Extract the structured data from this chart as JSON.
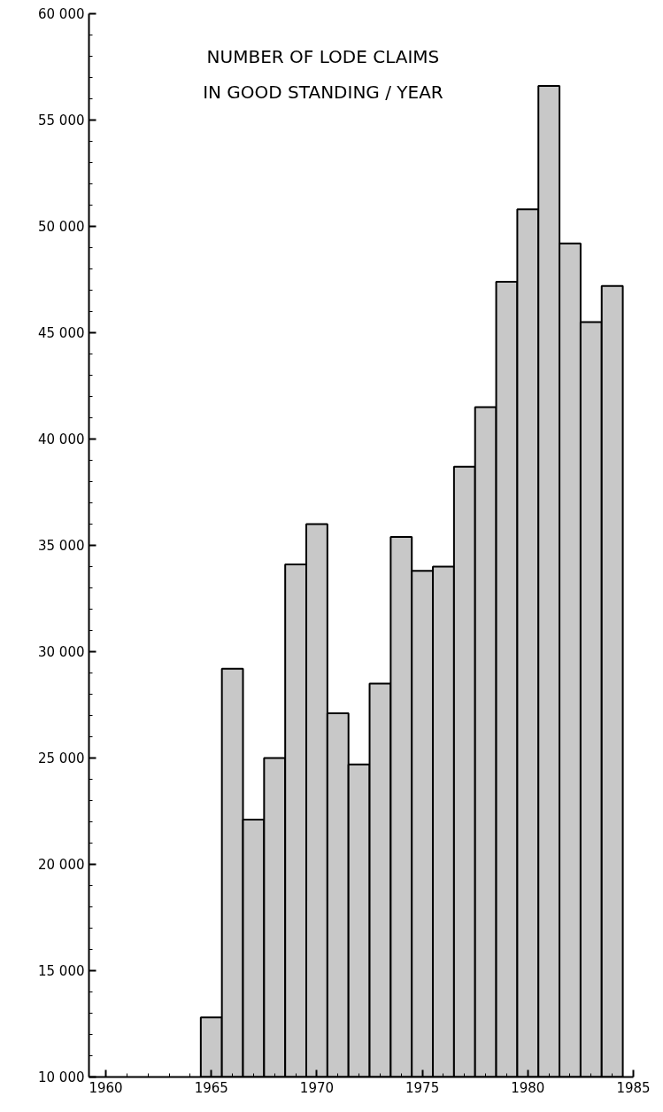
{
  "chart_data": {
    "type": "histogram",
    "title": "NUMBER OF LODE CLAIMS\nIN GOOD STANDING / YEAR",
    "bins": [
      1964.5,
      1965.5,
      1966.5,
      1967.5,
      1968.5,
      1969.5,
      1970.5,
      1971.5,
      1972.5,
      1973.5,
      1974.5,
      1975.5,
      1976.5,
      1977.5,
      1978.5,
      1979.5,
      1980.5,
      1981.5,
      1982.5,
      1983.5,
      1984.5
    ],
    "values": [
      12800,
      29200,
      22100,
      25000,
      34100,
      36000,
      27100,
      24700,
      28500,
      35400,
      33800,
      34000,
      38700,
      41500,
      47400,
      50800,
      56600,
      49200,
      45500,
      47200
    ],
    "color": "#c8c8c8",
    "xlim": [
      1959.2,
      1985
    ],
    "xticks": [
      1960,
      1965,
      1970,
      1975,
      1980,
      1985
    ],
    "ylim": [
      10000,
      60000
    ],
    "yticks": [
      {
        "value": 10000,
        "label": "10 000"
      },
      {
        "value": 15000,
        "label": "15 000"
      },
      {
        "value": 20000,
        "label": "20 000"
      },
      {
        "value": 25000,
        "label": "25 000"
      },
      {
        "value": 30000,
        "label": "30 000"
      },
      {
        "value": 35000,
        "label": "35 000"
      },
      {
        "value": 40000,
        "label": "40 000"
      },
      {
        "value": 45000,
        "label": "45 000"
      },
      {
        "value": 50000,
        "label": "50 000"
      },
      {
        "value": 55000,
        "label": "55 000"
      },
      {
        "value": 60000,
        "label": "60 000"
      }
    ],
    "grid": false
  }
}
